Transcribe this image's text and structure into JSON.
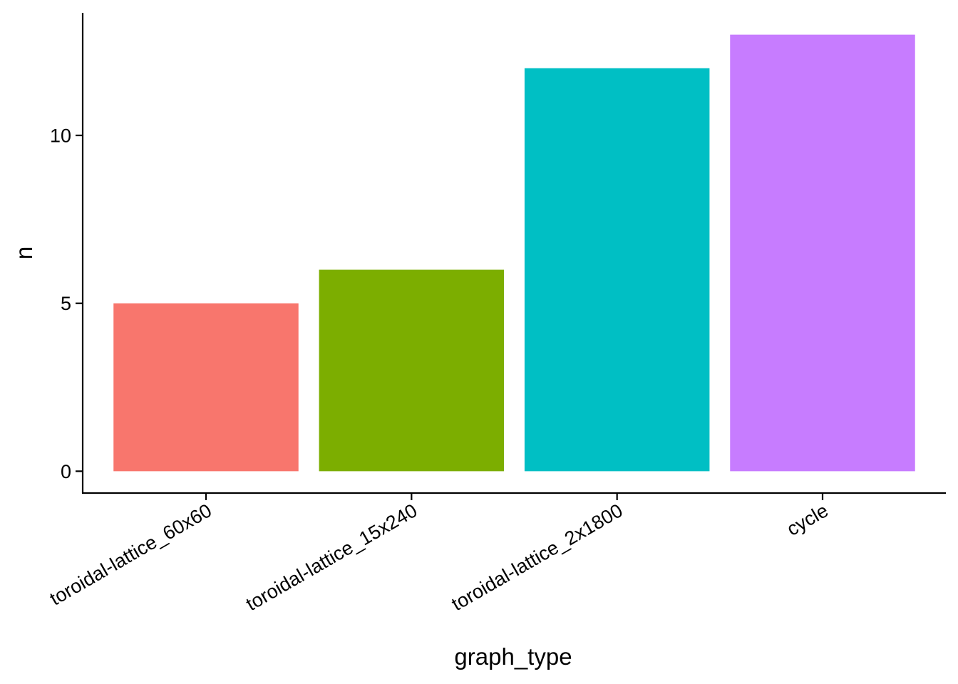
{
  "chart_data": {
    "type": "bar",
    "categories": [
      "toroidal-lattice_60x60",
      "toroidal-lattice_15x240",
      "toroidal-lattice_2x1800",
      "cycle"
    ],
    "values": [
      5,
      6,
      12,
      13
    ],
    "colors": [
      "#F8766D",
      "#7CAE00",
      "#00BFC4",
      "#C77CFF"
    ],
    "title": "",
    "xlabel": "graph_type",
    "ylabel": "n",
    "ylim": [
      -0.65,
      13.65
    ],
    "yticks": [
      0,
      5,
      10
    ],
    "grid": false,
    "legend": "none"
  }
}
